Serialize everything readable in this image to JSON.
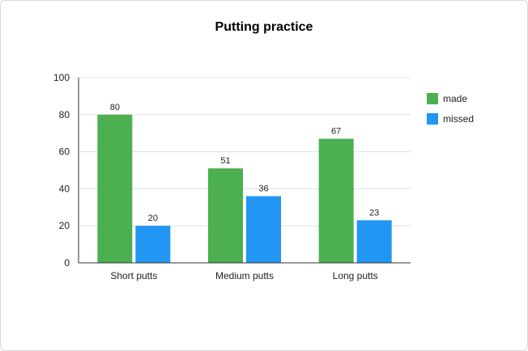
{
  "chart_data": {
    "type": "bar",
    "title": "Putting practice",
    "categories": [
      "Short putts",
      "Medium putts",
      "Long putts"
    ],
    "series": [
      {
        "name": "made",
        "values": [
          80,
          51,
          67
        ],
        "color": "#4caf50"
      },
      {
        "name": "missed",
        "values": [
          20,
          36,
          23
        ],
        "color": "#2196f3"
      }
    ],
    "ylim": [
      0,
      100
    ],
    "yticks": [
      0,
      20,
      40,
      60,
      80,
      100
    ],
    "grid": true,
    "legend_position": "right",
    "data_labels": true
  }
}
